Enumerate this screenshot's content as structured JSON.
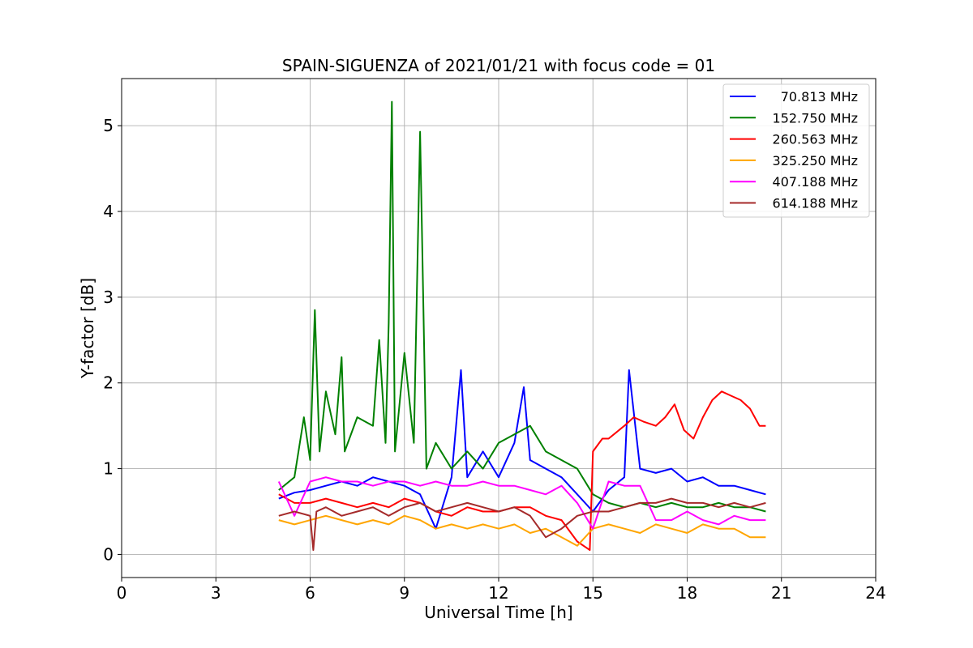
{
  "chart_data": {
    "type": "line",
    "title": "SPAIN-SIGUENZA of 2021/01/21 with focus code = 01",
    "xlabel": "Universal Time [h]",
    "ylabel": "Y-factor [dB]",
    "xlim": [
      0,
      24
    ],
    "ylim": [
      -0.27,
      5.55
    ],
    "xticks": [
      0,
      3,
      6,
      9,
      12,
      15,
      18,
      21,
      24
    ],
    "yticks": [
      0,
      1,
      2,
      3,
      4,
      5
    ],
    "grid": true,
    "legend_position": "top-right",
    "series": [
      {
        "name": "70.813 MHz",
        "color": "#0000ff",
        "x": [
          5.0,
          5.5,
          6.0,
          6.5,
          7.0,
          7.5,
          8.0,
          8.5,
          9.0,
          9.5,
          10.0,
          10.5,
          10.8,
          11.0,
          11.5,
          12.0,
          12.5,
          12.8,
          13.0,
          13.5,
          14.0,
          14.5,
          15.0,
          15.5,
          16.0,
          16.15,
          16.5,
          17.0,
          17.5,
          18.0,
          18.5,
          19.0,
          19.5,
          20.0,
          20.5
        ],
        "y": [
          0.65,
          0.72,
          0.75,
          0.8,
          0.85,
          0.8,
          0.9,
          0.85,
          0.8,
          0.7,
          0.3,
          0.9,
          2.15,
          0.9,
          1.2,
          0.9,
          1.3,
          1.95,
          1.1,
          1.0,
          0.9,
          0.7,
          0.5,
          0.75,
          0.9,
          2.15,
          1.0,
          0.95,
          1.0,
          0.85,
          0.9,
          0.8,
          0.8,
          0.75,
          0.7
        ]
      },
      {
        "name": "152.750 MHz",
        "color": "#008000",
        "x": [
          5.0,
          5.5,
          5.8,
          6.0,
          6.15,
          6.3,
          6.5,
          6.8,
          7.0,
          7.1,
          7.5,
          8.0,
          8.2,
          8.4,
          8.5,
          8.6,
          8.7,
          9.0,
          9.3,
          9.5,
          9.7,
          10.0,
          10.5,
          11.0,
          11.5,
          12.0,
          12.5,
          13.0,
          13.5,
          14.0,
          14.5,
          15.0,
          15.5,
          16.0,
          16.5,
          17.0,
          17.5,
          18.0,
          18.5,
          19.0,
          19.5,
          20.0,
          20.5
        ],
        "y": [
          0.75,
          0.9,
          1.6,
          1.1,
          2.85,
          1.2,
          1.9,
          1.4,
          2.3,
          1.2,
          1.6,
          1.5,
          2.5,
          1.3,
          2.7,
          5.28,
          1.2,
          2.35,
          1.3,
          4.93,
          1.0,
          1.3,
          1.0,
          1.2,
          1.0,
          1.3,
          1.4,
          1.5,
          1.2,
          1.1,
          1.0,
          0.7,
          0.6,
          0.55,
          0.6,
          0.55,
          0.6,
          0.55,
          0.55,
          0.6,
          0.55,
          0.55,
          0.5
        ]
      },
      {
        "name": "260.563 MHz",
        "color": "#ff0000",
        "x": [
          5.0,
          5.5,
          6.0,
          6.5,
          7.0,
          7.5,
          8.0,
          8.5,
          9.0,
          9.5,
          10.0,
          10.5,
          11.0,
          11.5,
          12.0,
          12.5,
          13.0,
          13.5,
          14.0,
          14.5,
          14.9,
          15.0,
          15.3,
          15.5,
          16.0,
          16.3,
          16.6,
          17.0,
          17.3,
          17.6,
          17.9,
          18.2,
          18.5,
          18.8,
          19.1,
          19.4,
          19.7,
          20.0,
          20.3,
          20.5
        ],
        "y": [
          0.7,
          0.6,
          0.6,
          0.65,
          0.6,
          0.55,
          0.6,
          0.55,
          0.65,
          0.6,
          0.5,
          0.45,
          0.55,
          0.5,
          0.5,
          0.55,
          0.55,
          0.45,
          0.4,
          0.15,
          0.05,
          1.2,
          1.35,
          1.35,
          1.5,
          1.6,
          1.55,
          1.5,
          1.6,
          1.75,
          1.45,
          1.35,
          1.6,
          1.8,
          1.9,
          1.85,
          1.8,
          1.7,
          1.5,
          1.5
        ]
      },
      {
        "name": "325.250 MHz",
        "color": "#ffa500",
        "x": [
          5.0,
          5.5,
          6.0,
          6.5,
          7.0,
          7.5,
          8.0,
          8.5,
          9.0,
          9.5,
          10.0,
          10.5,
          11.0,
          11.5,
          12.0,
          12.5,
          13.0,
          13.5,
          14.0,
          14.5,
          15.0,
          15.5,
          16.0,
          16.5,
          17.0,
          17.5,
          18.0,
          18.5,
          19.0,
          19.5,
          20.0,
          20.5
        ],
        "y": [
          0.4,
          0.35,
          0.4,
          0.45,
          0.4,
          0.35,
          0.4,
          0.35,
          0.45,
          0.4,
          0.3,
          0.35,
          0.3,
          0.35,
          0.3,
          0.35,
          0.25,
          0.3,
          0.2,
          0.1,
          0.3,
          0.35,
          0.3,
          0.25,
          0.35,
          0.3,
          0.25,
          0.35,
          0.3,
          0.3,
          0.2,
          0.2
        ]
      },
      {
        "name": "407.188 MHz",
        "color": "#ff00ff",
        "x": [
          5.0,
          5.5,
          6.0,
          6.5,
          7.0,
          7.5,
          8.0,
          8.5,
          9.0,
          9.5,
          10.0,
          10.5,
          11.0,
          11.5,
          12.0,
          12.5,
          13.0,
          13.5,
          14.0,
          14.5,
          15.0,
          15.5,
          16.0,
          16.5,
          17.0,
          17.5,
          18.0,
          18.5,
          19.0,
          19.5,
          20.0,
          20.5
        ],
        "y": [
          0.85,
          0.45,
          0.85,
          0.9,
          0.85,
          0.85,
          0.8,
          0.85,
          0.85,
          0.8,
          0.85,
          0.8,
          0.8,
          0.85,
          0.8,
          0.8,
          0.75,
          0.7,
          0.8,
          0.6,
          0.3,
          0.85,
          0.8,
          0.8,
          0.4,
          0.4,
          0.5,
          0.4,
          0.35,
          0.45,
          0.4,
          0.4
        ]
      },
      {
        "name": "614.188 MHz",
        "color": "#a52a2a",
        "x": [
          5.0,
          5.5,
          6.0,
          6.1,
          6.2,
          6.5,
          7.0,
          7.5,
          8.0,
          8.5,
          9.0,
          9.5,
          10.0,
          10.5,
          11.0,
          11.5,
          12.0,
          12.5,
          13.0,
          13.5,
          14.0,
          14.5,
          15.0,
          15.5,
          16.0,
          16.5,
          17.0,
          17.5,
          18.0,
          18.5,
          19.0,
          19.5,
          20.0,
          20.5
        ],
        "y": [
          0.45,
          0.5,
          0.45,
          0.05,
          0.5,
          0.55,
          0.45,
          0.5,
          0.55,
          0.45,
          0.55,
          0.6,
          0.5,
          0.55,
          0.6,
          0.55,
          0.5,
          0.55,
          0.45,
          0.2,
          0.3,
          0.45,
          0.5,
          0.5,
          0.55,
          0.6,
          0.6,
          0.65,
          0.6,
          0.6,
          0.55,
          0.6,
          0.55,
          0.6
        ]
      }
    ]
  }
}
